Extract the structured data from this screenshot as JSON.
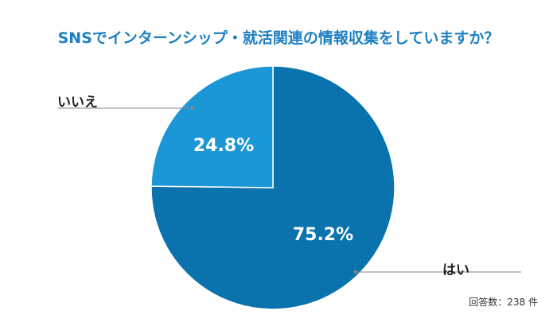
{
  "chart_data": {
    "type": "pie",
    "title": "SNSでインターンシップ・就活関連の情報収集をしていますか？",
    "slices": [
      {
        "label": "はい",
        "value": 75.2,
        "value_label": "75.2%",
        "color": "#0a72ad"
      },
      {
        "label": "いいえ",
        "value": 24.8,
        "value_label": "24.8%",
        "color": "#1b96d6"
      }
    ],
    "start_angle_deg": 0,
    "direction": "clockwise",
    "note": "回答数：238 件"
  },
  "colors": {
    "title": "#1d7fc2",
    "leader_line": "#888888",
    "slice_border": "#ffffff"
  }
}
